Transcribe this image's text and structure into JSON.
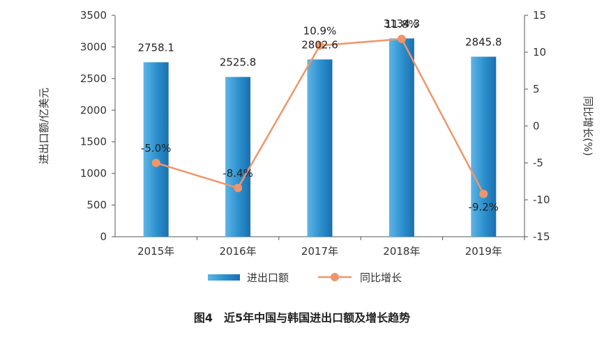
{
  "chart_data": {
    "type": "bar",
    "categories": [
      "2015年",
      "2016年",
      "2017年",
      "2018年",
      "2019年"
    ],
    "series": [
      {
        "name": "进出口额",
        "type": "bar",
        "axis": "left",
        "values": [
          2758.1,
          2525.8,
          2802.6,
          3134.3,
          2845.8
        ],
        "labels": [
          "2758.1",
          "2525.8",
          "2802.6",
          "3134.3",
          "2845.8"
        ],
        "color": "#2a8fcc"
      },
      {
        "name": "同比增长",
        "type": "line",
        "axis": "right",
        "values": [
          -5.0,
          -8.4,
          10.9,
          11.8,
          -9.2
        ],
        "labels": [
          "-5.0%",
          "-8.4%",
          "10.9%",
          "11.8%",
          "-9.2%"
        ],
        "color": "#f0956a"
      }
    ],
    "ylabel": "进出口额/亿美元",
    "y2label": "同比增长(%)",
    "ylim": [
      0,
      3500
    ],
    "y2lim": [
      -15,
      15
    ],
    "yticks": [
      0,
      500,
      1000,
      1500,
      2000,
      2500,
      3000,
      3500
    ],
    "y2ticks": [
      15,
      10,
      5,
      0,
      -5,
      -10,
      -15
    ],
    "legend": [
      "进出口额",
      "同比增长"
    ],
    "legend_position": "bottom",
    "grid": false,
    "caption": "图4　近5年中国与韩国进出口额及增长趋势"
  }
}
